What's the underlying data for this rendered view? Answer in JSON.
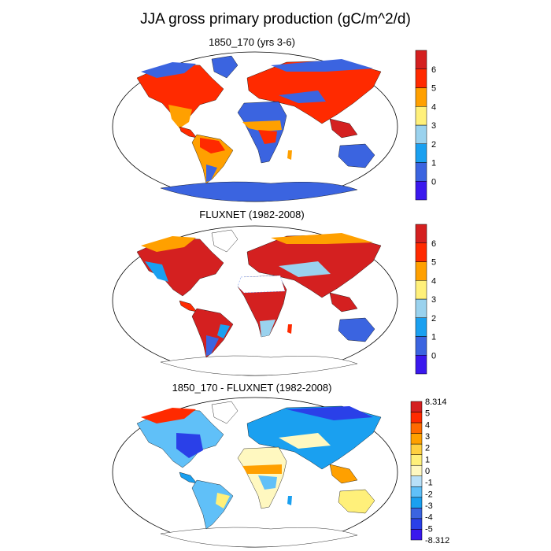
{
  "figure": {
    "title": "JJA gross primary production (gC/m^2/d)"
  },
  "panels": [
    {
      "title": "1850_170 (yrs 3-6)",
      "colorbar": {
        "ticks": [
          "0",
          "1",
          "2",
          "3",
          "4",
          "5",
          "6"
        ],
        "colors": [
          "#3a18ee",
          "#3b64e0",
          "#1aa0f0",
          "#9ad2ee",
          "#fff07a",
          "#ffa000",
          "#ff2a00",
          "#d42020"
        ]
      }
    },
    {
      "title": "FLUXNET (1982-2008)",
      "colorbar": {
        "ticks": [
          "0",
          "1",
          "2",
          "3",
          "4",
          "5",
          "6"
        ],
        "colors": [
          "#3a18ee",
          "#3b64e0",
          "#1aa0f0",
          "#9ad2ee",
          "#fff07a",
          "#ffa000",
          "#ff2a00",
          "#d42020"
        ]
      }
    },
    {
      "title": "1850_170 - FLUXNET (1982-2008)",
      "colorbar": {
        "ticks": [
          "8.314",
          "5",
          "4",
          "3",
          "2",
          "1",
          "0",
          "-1",
          "-2",
          "-3",
          "-4",
          "-5",
          "-8.312"
        ],
        "colors": [
          "#d42020",
          "#ff2a00",
          "#ff6a00",
          "#ffa000",
          "#ffd040",
          "#fff07a",
          "#fff8c0",
          "#b8e0f8",
          "#60c0f8",
          "#1aa0f0",
          "#3b64e0",
          "#2a40e8",
          "#3a18ee"
        ]
      }
    }
  ]
}
